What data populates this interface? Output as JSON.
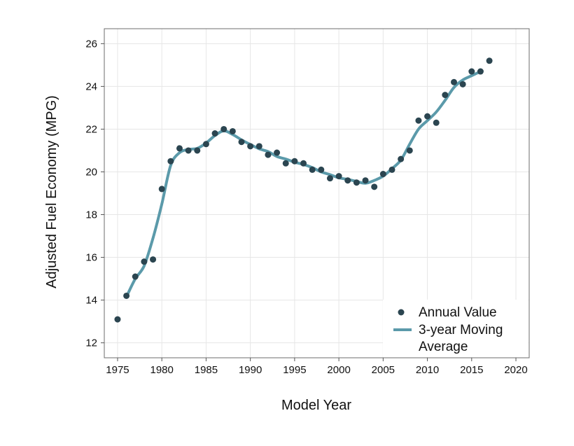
{
  "chart_data": {
    "type": "scatter",
    "xlabel": "Model Year",
    "ylabel": "Adjusted Fuel Economy (MPG)",
    "xlim": [
      1973.5,
      2021.5
    ],
    "ylim": [
      11.3,
      26.7
    ],
    "xticks": [
      1975,
      1980,
      1985,
      1990,
      1995,
      2000,
      2005,
      2010,
      2015,
      2020
    ],
    "yticks": [
      12,
      14,
      16,
      18,
      20,
      22,
      24,
      26
    ],
    "grid": true,
    "legend_position": "bottom-right",
    "series": [
      {
        "name": "Annual Value",
        "kind": "points",
        "color": "#2b4550",
        "x": [
          1975,
          1976,
          1977,
          1978,
          1979,
          1980,
          1981,
          1982,
          1983,
          1984,
          1985,
          1986,
          1987,
          1988,
          1989,
          1990,
          1991,
          1992,
          1993,
          1994,
          1995,
          1996,
          1997,
          1998,
          1999,
          2000,
          2001,
          2002,
          2003,
          2004,
          2005,
          2006,
          2007,
          2008,
          2009,
          2010,
          2011,
          2012,
          2013,
          2014,
          2015,
          2016,
          2017
        ],
        "y": [
          13.1,
          14.2,
          15.1,
          15.8,
          15.9,
          19.2,
          20.5,
          21.1,
          21.0,
          21.0,
          21.3,
          21.8,
          22.0,
          21.9,
          21.4,
          21.2,
          21.2,
          20.8,
          20.9,
          20.4,
          20.5,
          20.4,
          20.1,
          20.1,
          19.7,
          19.8,
          19.6,
          19.5,
          19.6,
          19.3,
          19.9,
          20.1,
          20.6,
          21.0,
          22.4,
          22.6,
          22.3,
          23.6,
          24.2,
          24.1,
          24.7,
          24.7,
          25.2
        ]
      },
      {
        "name": "3-year Moving Average",
        "kind": "line",
        "color": "#5b9aaa",
        "x": [
          1976,
          1977,
          1978,
          1979,
          1980,
          1981,
          1982,
          1983,
          1984,
          1985,
          1986,
          1987,
          1988,
          1989,
          1990,
          1991,
          1992,
          1993,
          1994,
          1995,
          1996,
          1997,
          1998,
          1999,
          2000,
          2001,
          2002,
          2003,
          2004,
          2005,
          2006,
          2007,
          2008,
          2009,
          2010,
          2011,
          2012,
          2013,
          2014,
          2015,
          2016
        ],
        "y": [
          14.15,
          15.0,
          15.6,
          16.9,
          18.5,
          20.3,
          20.9,
          21.05,
          21.1,
          21.35,
          21.7,
          21.92,
          21.75,
          21.5,
          21.28,
          21.08,
          20.95,
          20.72,
          20.6,
          20.45,
          20.35,
          20.2,
          20.0,
          19.87,
          19.72,
          19.65,
          19.55,
          19.47,
          19.6,
          19.8,
          20.15,
          20.55,
          21.3,
          22.0,
          22.4,
          22.8,
          23.35,
          23.95,
          24.3,
          24.5,
          24.7
        ]
      }
    ],
    "legend": {
      "entries": [
        {
          "label": "Annual Value",
          "symbol": "dot"
        },
        {
          "label_lines": [
            "3-year Moving",
            "Average"
          ],
          "symbol": "line"
        }
      ]
    }
  }
}
